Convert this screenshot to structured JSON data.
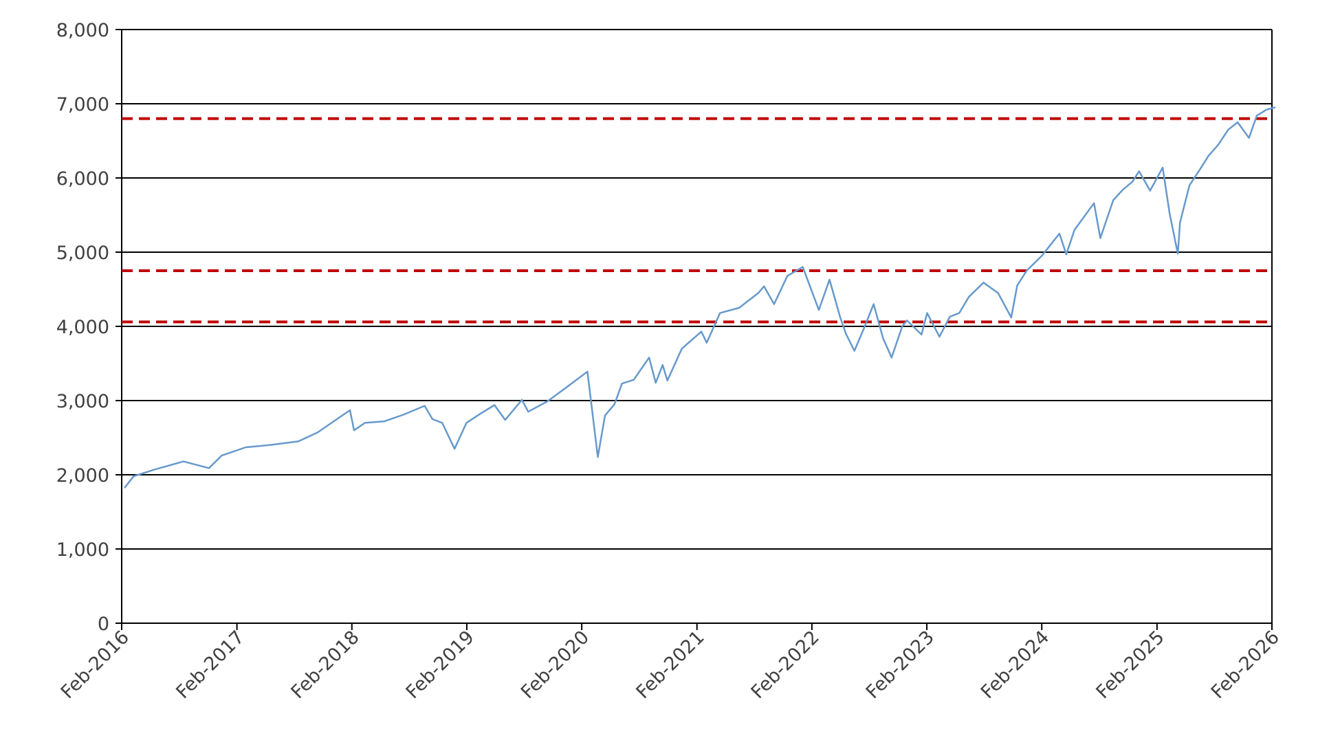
{
  "chart_data": {
    "type": "line",
    "title": "",
    "xlabel": "",
    "ylabel": "",
    "xlim": [
      "2016-02",
      "2026-02"
    ],
    "ylim": [
      0,
      8000
    ],
    "y_ticks": [
      0,
      1000,
      2000,
      3000,
      4000,
      5000,
      6000,
      7000,
      8000
    ],
    "y_tick_labels": [
      "0",
      "1,000",
      "2,000",
      "3,000",
      "4,000",
      "5,000",
      "6,000",
      "7,000",
      "8,000"
    ],
    "x_ticks": [
      "2016-02",
      "2017-02",
      "2018-02",
      "2019-02",
      "2020-02",
      "2021-02",
      "2022-02",
      "2023-02",
      "2024-02",
      "2025-02",
      "2026-02"
    ],
    "x_tick_labels": [
      "Feb-2016",
      "Feb-2017",
      "Feb-2018",
      "Feb-2019",
      "Feb-2020",
      "Feb-2021",
      "Feb-2022",
      "Feb-2023",
      "Feb-2024",
      "Feb-2025",
      "Feb-2026"
    ],
    "grid": "horizontal",
    "legend": "none",
    "series": [
      {
        "color": "#6699cc",
        "x": [
          "2016-02-11",
          "2016-03-10",
          "2016-05-15",
          "2016-08-15",
          "2016-11-04",
          "2016-12-15",
          "2017-03-01",
          "2017-05-15",
          "2017-08-15",
          "2017-10-15",
          "2018-01-26",
          "2018-02-08",
          "2018-03-15",
          "2018-05-15",
          "2018-07-15",
          "2018-09-20",
          "2018-10-15",
          "2018-11-15",
          "2018-12-24",
          "2019-01-31",
          "2019-03-15",
          "2019-04-30",
          "2019-06-03",
          "2019-07-26",
          "2019-08-15",
          "2019-10-15",
          "2019-12-15",
          "2020-02-19",
          "2020-03-23",
          "2020-04-15",
          "2020-05-15",
          "2020-06-08",
          "2020-07-15",
          "2020-09-02",
          "2020-09-23",
          "2020-10-15",
          "2020-10-30",
          "2020-12-15",
          "2021-02-15",
          "2021-03-04",
          "2021-04-15",
          "2021-06-15",
          "2021-08-15",
          "2021-09-02",
          "2021-10-04",
          "2021-11-15",
          "2022-01-03",
          "2022-02-23",
          "2022-03-29",
          "2022-05-02",
          "2022-05-20",
          "2022-06-16",
          "2022-07-15",
          "2022-08-16",
          "2022-09-15",
          "2022-10-12",
          "2022-11-15",
          "2022-11-30",
          "2023-01-15",
          "2023-02-02",
          "2023-03-13",
          "2023-04-15",
          "2023-05-15",
          "2023-06-15",
          "2023-07-31",
          "2023-09-15",
          "2023-10-27",
          "2023-11-15",
          "2023-12-15",
          "2024-02-01",
          "2024-03-28",
          "2024-04-19",
          "2024-05-15",
          "2024-07-16",
          "2024-08-05",
          "2024-09-15",
          "2024-10-15",
          "2024-11-15",
          "2024-12-06",
          "2025-01-10",
          "2025-02-19",
          "2025-03-13",
          "2025-04-08",
          "2025-04-15",
          "2025-05-15",
          "2025-06-15",
          "2025-07-15",
          "2025-08-15",
          "2025-09-15",
          "2025-10-15",
          "2025-11-20",
          "2025-12-15",
          "2026-01-15",
          "2026-02-10"
        ],
        "y": [
          1830,
          1980,
          2070,
          2180,
          2090,
          2260,
          2370,
          2400,
          2450,
          2570,
          2870,
          2600,
          2700,
          2720,
          2810,
          2930,
          2750,
          2700,
          2350,
          2700,
          2820,
          2940,
          2740,
          3010,
          2850,
          2990,
          3180,
          3390,
          2240,
          2800,
          2950,
          3230,
          3280,
          3580,
          3240,
          3480,
          3270,
          3700,
          3930,
          3780,
          4180,
          4250,
          4450,
          4540,
          4300,
          4680,
          4800,
          4220,
          4630,
          4120,
          3900,
          3670,
          3960,
          4300,
          3840,
          3580,
          4000,
          4080,
          3890,
          4180,
          3860,
          4130,
          4180,
          4400,
          4590,
          4450,
          4120,
          4550,
          4750,
          4950,
          5250,
          4970,
          5300,
          5660,
          5190,
          5700,
          5840,
          5950,
          6090,
          5830,
          6140,
          5520,
          4980,
          5400,
          5900,
          6100,
          6300,
          6450,
          6650,
          6750,
          6540,
          6840,
          6920,
          6950
        ]
      }
    ],
    "reference_lines": [
      {
        "y": 6800,
        "color": "#c00000",
        "style": "dashed"
      },
      {
        "y": 4750,
        "color": "#c00000",
        "style": "dashed"
      },
      {
        "y": 4060,
        "color": "#c00000",
        "style": "dashed"
      }
    ]
  }
}
